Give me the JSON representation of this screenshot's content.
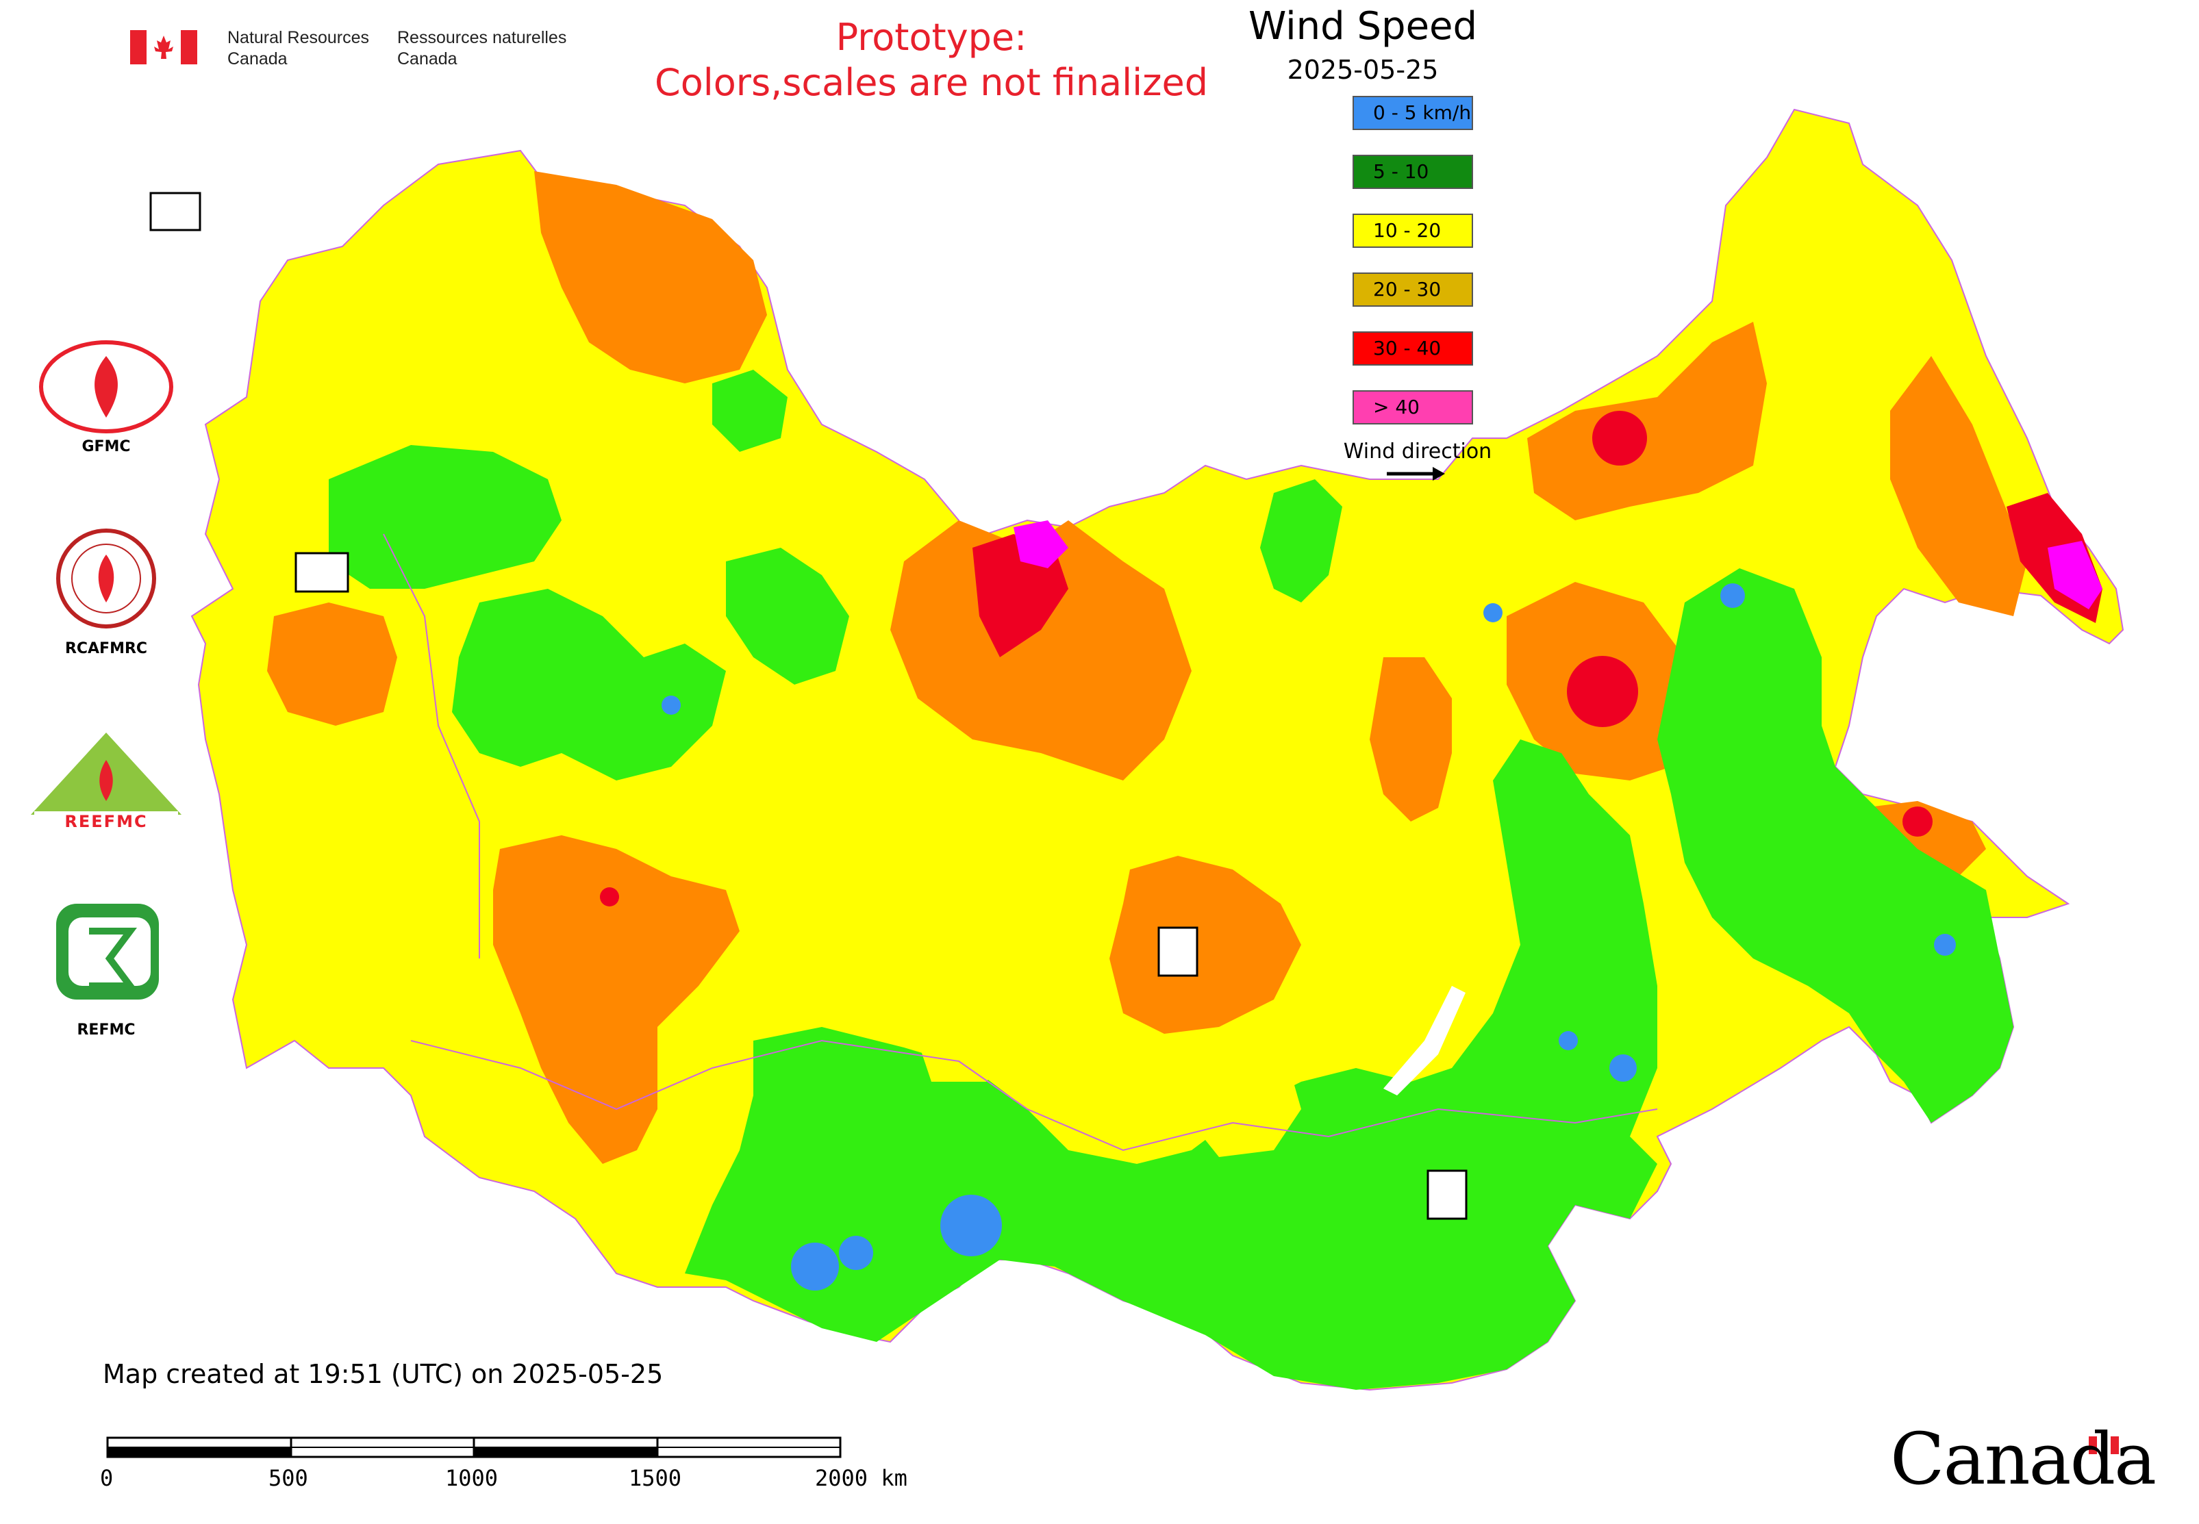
{
  "header": {
    "gov_en": "Natural Resources Canada",
    "gov_fr": "Ressources naturelles Canada",
    "prototype_line1": "Prototype:",
    "prototype_line2": "Colors,scales are not finalized"
  },
  "legend": {
    "title": "Wind Speed",
    "date": "2025-05-25",
    "classes": [
      {
        "label": "0 - 5 km/h",
        "color": "#3a8ff2"
      },
      {
        "label": "5 - 10",
        "color": "#118a11"
      },
      {
        "label": "10 - 20",
        "color": "#ffff00"
      },
      {
        "label": "20 - 30",
        "color": "#dbb300"
      },
      {
        "label": "30 - 40",
        "color": "#ff0000"
      },
      {
        "label": "> 40",
        "color": "#ff3fb0"
      }
    ],
    "wind_direction_label": "Wind direction"
  },
  "map_colors": {
    "calm": "#3a8ff2",
    "light": "#33ee11",
    "moderate": "#ffff00",
    "fresh": "#ff8800",
    "strong": "#ee0022",
    "extreme": "#ff00ff",
    "border": "#cc66dd"
  },
  "logos": {
    "gfmc": "GFMC",
    "rcafmrc": "RCAFMRC",
    "reefmc": "REEFMC",
    "refmc": "REFMC"
  },
  "footer": {
    "created": "Map created at 19:51 (UTC) on 2025-05-25",
    "scale_labels": [
      "0",
      "500",
      "1000",
      "1500",
      "2000 km"
    ],
    "wordmark": "Canada"
  }
}
